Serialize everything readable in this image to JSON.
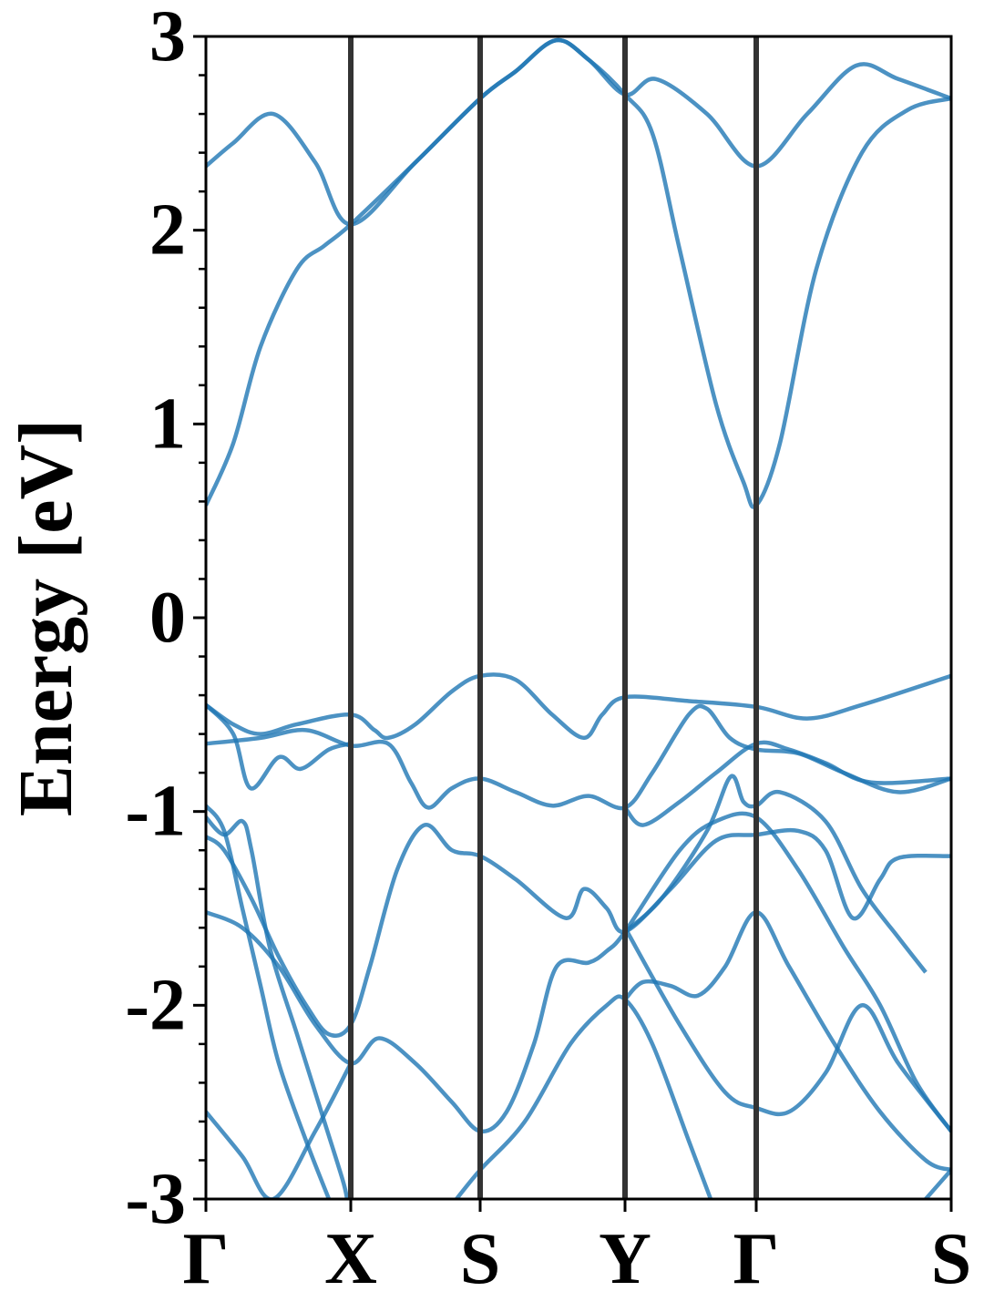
{
  "chart_data": {
    "type": "line",
    "ylabel": "Energy [eV]",
    "xlim": [
      0,
      818
    ],
    "ylim": [
      -3,
      3
    ],
    "xticks": [
      {
        "value": 0,
        "label": "Γ"
      },
      {
        "value": 159,
        "label": "X"
      },
      {
        "value": 301,
        "label": "S"
      },
      {
        "value": 460,
        "label": "Y"
      },
      {
        "value": 604,
        "label": "Γ"
      },
      {
        "value": 818,
        "label": "S"
      }
    ],
    "yticks": [
      -3,
      -2,
      -1,
      0,
      1,
      2,
      3
    ],
    "yminorticks": [
      -2.8,
      -2.6,
      -2.4,
      -2.2,
      -1.8,
      -1.6,
      -1.4,
      -1.2,
      -0.8,
      -0.6,
      -0.4,
      -0.2,
      0.2,
      0.4,
      0.6,
      0.8,
      1.2,
      1.4,
      1.6,
      1.8,
      2.2,
      2.4,
      2.6,
      2.8
    ],
    "color": "#1f77b4",
    "series": [
      {
        "x": [
          0,
          30,
          74,
          120,
          159,
          230,
          301,
          340,
          384,
          420,
          460,
          494,
          550,
          604,
          660,
          714,
          760,
          818
        ],
        "values": [
          2.33,
          2.45,
          2.6,
          2.35,
          2.03,
          2.35,
          2.68,
          2.82,
          2.98,
          2.88,
          2.7,
          2.78,
          2.6,
          2.33,
          2.6,
          2.85,
          2.78,
          2.68
        ]
      },
      {
        "x": [
          0,
          30,
          60,
          100,
          130,
          159,
          230,
          301,
          340,
          384,
          420,
          460,
          490,
          520,
          560,
          590,
          604,
          630,
          670,
          720,
          770,
          818
        ],
        "values": [
          0.58,
          0.9,
          1.4,
          1.8,
          1.92,
          2.03,
          2.35,
          2.68,
          2.82,
          2.98,
          2.88,
          2.7,
          2.5,
          1.9,
          1.1,
          0.7,
          0.58,
          0.9,
          1.8,
          2.4,
          2.62,
          2.68
        ]
      },
      {
        "x": [
          0,
          30,
          60,
          100,
          159,
          185,
          200,
          230,
          270,
          301,
          340,
          380,
          415,
          435,
          460,
          530,
          604,
          660,
          720,
          818
        ],
        "values": [
          -0.45,
          -0.55,
          -0.6,
          -0.55,
          -0.5,
          -0.58,
          -0.62,
          -0.55,
          -0.38,
          -0.3,
          -0.32,
          -0.5,
          -0.62,
          -0.5,
          -0.41,
          -0.43,
          -0.46,
          -0.52,
          -0.45,
          -0.3
        ]
      },
      {
        "x": [
          0,
          60,
          110,
          159,
          200,
          225,
          244,
          270,
          301,
          340,
          380,
          420,
          460,
          490,
          530,
          550,
          575,
          604,
          650,
          700,
          760,
          818
        ],
        "values": [
          -0.65,
          -0.62,
          -0.58,
          -0.66,
          -0.65,
          -0.85,
          -0.98,
          -0.88,
          -0.83,
          -0.9,
          -0.97,
          -0.92,
          -0.98,
          -0.8,
          -0.5,
          -0.47,
          -0.62,
          -0.68,
          -0.7,
          -0.8,
          -0.9,
          -0.83
        ]
      },
      {
        "x": [
          0,
          30,
          49,
          80,
          104,
          135,
          159
        ],
        "values": [
          -0.45,
          -0.6,
          -0.88,
          -0.72,
          -0.78,
          -0.68,
          -0.65
        ]
      },
      {
        "x": [
          0,
          20,
          40,
          60,
          80,
          110,
          135
        ],
        "values": [
          -0.97,
          -1.1,
          -1.5,
          -1.9,
          -2.3,
          -2.7,
          -3.0
        ]
      },
      {
        "x": [
          0,
          20,
          40,
          50,
          70,
          100,
          130,
          150,
          155
        ],
        "values": [
          -1.03,
          -1.12,
          -1.05,
          -1.2,
          -1.7,
          -2.15,
          -2.6,
          -2.9,
          -3.0
        ]
      },
      {
        "x": [
          0,
          20,
          50,
          80,
          110,
          135,
          159,
          180,
          210,
          240,
          270,
          301,
          340,
          395,
          415,
          440,
          460,
          510,
          560,
          604,
          650,
          680,
          710,
          740,
          760,
          818
        ],
        "values": [
          -1.13,
          -1.2,
          -1.45,
          -1.75,
          -2.0,
          -2.15,
          -2.1,
          -1.8,
          -1.3,
          -1.07,
          -1.2,
          -1.23,
          -1.35,
          -1.55,
          -1.4,
          -1.5,
          -1.62,
          -1.4,
          -1.15,
          -1.12,
          -1.1,
          -1.2,
          -1.55,
          -1.35,
          -1.24,
          -1.23
        ]
      },
      {
        "x": [
          0,
          40,
          80,
          120,
          159,
          190,
          230,
          270,
          301,
          330,
          360,
          385,
          420,
          440,
          460,
          520,
          560,
          604,
          650,
          700,
          740,
          780,
          818
        ],
        "values": [
          -1.52,
          -1.6,
          -1.8,
          -2.1,
          -2.3,
          -2.17,
          -2.3,
          -2.5,
          -2.65,
          -2.55,
          -2.2,
          -1.8,
          -1.78,
          -1.72,
          -1.62,
          -1.2,
          -1.05,
          -1.03,
          -1.3,
          -1.7,
          -2.0,
          -2.4,
          -2.65
        ]
      },
      {
        "x": [
          0,
          40,
          74,
          120,
          159
        ],
        "values": [
          -2.55,
          -2.78,
          -3.0,
          -2.65,
          -2.3
        ]
      },
      {
        "x": [
          275,
          301,
          350,
          400,
          440,
          460,
          490,
          530,
          554
        ],
        "values": [
          -3.0,
          -2.85,
          -2.6,
          -2.2,
          -2.0,
          -1.97,
          -2.2,
          -2.7,
          -3.0
        ]
      },
      {
        "x": [
          460,
          480,
          510,
          540,
          570,
          604,
          640,
          690,
          740,
          790,
          818
        ],
        "values": [
          -1.97,
          -1.88,
          -1.9,
          -1.95,
          -1.8,
          -1.52,
          -1.8,
          -2.2,
          -2.55,
          -2.8,
          -2.85
        ]
      },
      {
        "x": [
          460,
          520,
          570,
          604,
          640,
          680,
          720,
          760,
          818
        ],
        "values": [
          -1.6,
          -2.1,
          -2.45,
          -2.53,
          -2.55,
          -2.35,
          -2.0,
          -2.3,
          -2.65
        ]
      },
      {
        "x": [
          460,
          500,
          550,
          576,
          590,
          604,
          630,
          680,
          720,
          760,
          790
        ],
        "values": [
          -1.62,
          -1.45,
          -1.1,
          -0.82,
          -0.95,
          -0.97,
          -0.9,
          -1.05,
          -1.4,
          -1.65,
          -1.83
        ]
      },
      {
        "x": [
          790,
          818
        ],
        "values": [
          -3.0,
          -2.85
        ]
      },
      {
        "x": [
          460,
          480,
          520,
          560,
          604,
          640,
          680,
          730,
          818
        ],
        "values": [
          -0.98,
          -1.07,
          -0.95,
          -0.8,
          -0.65,
          -0.68,
          -0.75,
          -0.85,
          -0.83
        ]
      }
    ]
  }
}
